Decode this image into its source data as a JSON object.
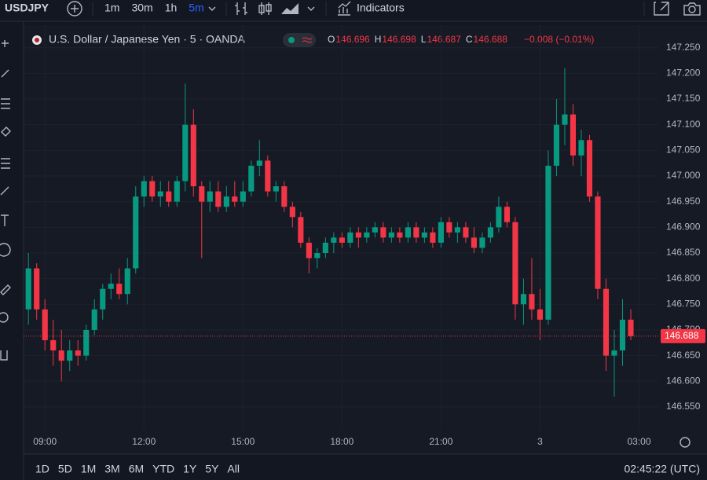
{
  "toolbar": {
    "symbol": "USDJPY",
    "intervals": [
      "1m",
      "30m",
      "1h",
      "5m"
    ],
    "indicators": "Indicators"
  },
  "legend": {
    "title": "U.S. Dollar / Japanese Yen · 5 · OANDA",
    "ohlc": [
      {
        "label": "O",
        "value": "146.696"
      },
      {
        "label": "H",
        "value": "146.698"
      },
      {
        "label": "L",
        "value": "146.687"
      },
      {
        "label": "C",
        "value": "146.688"
      }
    ],
    "change": "−0.008 (−0.01%)"
  },
  "chart_data": {
    "type": "candlestick",
    "up_color": "#089981",
    "down_color": "#f23645",
    "grid": true,
    "x": [
      "08:30",
      "08:45",
      "09:00",
      "09:15",
      "09:30",
      "09:45",
      "10:00",
      "10:15",
      "10:30",
      "10:45",
      "11:00",
      "11:15",
      "11:30",
      "11:45",
      "12:00",
      "12:15",
      "12:30",
      "12:45",
      "13:00",
      "13:15",
      "13:30",
      "13:45",
      "14:00",
      "14:15",
      "14:30",
      "14:45",
      "15:00",
      "15:15",
      "15:30",
      "15:45",
      "16:00",
      "16:15",
      "16:30",
      "16:45",
      "17:00",
      "17:15",
      "17:30",
      "17:45",
      "18:00",
      "18:15",
      "18:30",
      "18:45",
      "19:00",
      "19:15",
      "19:30",
      "19:45",
      "20:00",
      "20:15",
      "20:30",
      "20:45",
      "21:00",
      "21:15",
      "21:30",
      "21:45",
      "22:00",
      "22:15",
      "22:30",
      "22:45",
      "23:00",
      "23:15",
      "23:30",
      "23:45",
      "00:00",
      "00:15",
      "00:30",
      "00:45",
      "01:00",
      "01:15",
      "01:30",
      "01:45",
      "02:00",
      "02:15",
      "02:30",
      "02:45"
    ],
    "open": [
      146.74,
      146.82,
      146.74,
      146.68,
      146.66,
      146.64,
      146.66,
      146.65,
      146.7,
      146.74,
      146.78,
      146.79,
      146.77,
      146.82,
      146.96,
      146.99,
      146.96,
      146.97,
      146.95,
      146.99,
      147.1,
      146.98,
      146.95,
      146.97,
      146.94,
      146.96,
      146.95,
      146.97,
      147.02,
      147.03,
      146.97,
      146.98,
      146.94,
      146.92,
      146.87,
      146.84,
      146.85,
      146.87,
      146.88,
      146.87,
      146.89,
      146.88,
      146.89,
      146.9,
      146.88,
      146.89,
      146.88,
      146.9,
      146.88,
      146.89,
      146.87,
      146.91,
      146.89,
      146.9,
      146.88,
      146.86,
      146.88,
      146.9,
      146.94,
      146.91,
      146.75,
      146.77,
      146.74,
      146.72,
      147.02,
      147.1,
      147.12,
      147.04,
      147.07,
      146.96,
      146.78,
      146.65,
      146.66,
      146.72
    ],
    "high": [
      146.85,
      146.83,
      146.76,
      146.72,
      146.7,
      146.68,
      146.68,
      146.71,
      146.76,
      146.79,
      146.81,
      146.82,
      146.84,
      146.98,
      147.0,
      147.0,
      146.99,
      146.99,
      147.0,
      147.18,
      147.13,
      146.99,
      146.99,
      146.99,
      146.98,
      146.99,
      146.99,
      147.03,
      147.07,
      147.04,
      146.99,
      146.99,
      146.95,
      146.93,
      146.88,
      146.86,
      146.88,
      146.89,
      146.89,
      146.9,
      146.9,
      146.9,
      146.91,
      146.91,
      146.9,
      146.9,
      146.91,
      146.91,
      146.9,
      146.9,
      146.92,
      146.92,
      146.91,
      146.91,
      146.9,
      146.89,
      146.91,
      146.96,
      146.95,
      146.92,
      146.8,
      146.84,
      146.78,
      147.05,
      147.15,
      147.21,
      147.14,
      147.09,
      147.08,
      146.97,
      146.8,
      146.7,
      146.76,
      146.74
    ],
    "low": [
      146.71,
      146.72,
      146.66,
      146.63,
      146.6,
      146.62,
      146.63,
      146.64,
      146.69,
      146.72,
      146.76,
      146.76,
      146.75,
      146.81,
      146.94,
      146.95,
      146.94,
      146.94,
      146.94,
      146.97,
      146.96,
      146.84,
      146.93,
      146.93,
      146.93,
      146.94,
      146.94,
      146.96,
      147.0,
      146.96,
      146.95,
      146.93,
      146.9,
      146.86,
      146.81,
      146.82,
      146.84,
      146.85,
      146.86,
      146.86,
      146.86,
      146.87,
      146.88,
      146.87,
      146.87,
      146.87,
      146.87,
      146.87,
      146.87,
      146.86,
      146.86,
      146.88,
      146.87,
      146.87,
      146.85,
      146.85,
      146.87,
      146.89,
      146.9,
      146.72,
      146.71,
      146.72,
      146.68,
      146.71,
      147.0,
      147.06,
      147.02,
      147.0,
      146.95,
      146.76,
      146.62,
      146.57,
      146.63,
      146.68
    ],
    "close": [
      146.82,
      146.74,
      146.68,
      146.66,
      146.64,
      146.66,
      146.65,
      146.7,
      146.74,
      146.78,
      146.79,
      146.77,
      146.82,
      146.96,
      146.99,
      146.96,
      146.97,
      146.95,
      146.99,
      147.1,
      146.98,
      146.95,
      146.97,
      146.94,
      146.96,
      146.95,
      146.97,
      147.02,
      147.03,
      146.97,
      146.98,
      146.94,
      146.92,
      146.87,
      146.84,
      146.85,
      146.87,
      146.88,
      146.87,
      146.89,
      146.88,
      146.89,
      146.9,
      146.88,
      146.89,
      146.88,
      146.9,
      146.88,
      146.89,
      146.87,
      146.91,
      146.89,
      146.9,
      146.88,
      146.86,
      146.88,
      146.9,
      146.94,
      146.91,
      146.75,
      146.77,
      146.74,
      146.72,
      147.02,
      147.1,
      147.12,
      147.04,
      147.07,
      146.96,
      146.78,
      146.65,
      146.66,
      146.72,
      146.688
    ],
    "xlim": [
      "08:24",
      "03:35"
    ],
    "xticks": [
      "09:00",
      "12:00",
      "15:00",
      "18:00",
      "21:00",
      {
        "value": "00:00",
        "label": "3"
      },
      "03:00"
    ],
    "ylim": [
      146.504,
      147.294
    ],
    "yticks": [
      {
        "value": 146.55,
        "label": "146.550"
      },
      {
        "value": 146.6,
        "label": "146.600"
      },
      {
        "value": 146.65,
        "label": "146.650"
      },
      {
        "value": 146.7,
        "label": "146.700"
      },
      {
        "value": 146.75,
        "label": "146.750"
      },
      {
        "value": 146.8,
        "label": "146.800"
      },
      {
        "value": 146.85,
        "label": "146.850"
      },
      {
        "value": 146.9,
        "label": "146.900"
      },
      {
        "value": 146.95,
        "label": "146.950"
      },
      {
        "value": 147.0,
        "label": "147.000"
      },
      {
        "value": 147.05,
        "label": "147.050"
      },
      {
        "value": 147.1,
        "label": "147.100"
      },
      {
        "value": 147.15,
        "label": "147.150"
      },
      {
        "value": 147.2,
        "label": "147.200"
      },
      {
        "value": 147.25,
        "label": "147.250"
      }
    ],
    "last_price": {
      "value": 146.688,
      "label": "146.688"
    }
  },
  "ranges": [
    "1D",
    "5D",
    "1M",
    "3M",
    "6M",
    "YTD",
    "1Y",
    "5Y",
    "All"
  ],
  "clock": "02:45:22 (UTC)"
}
